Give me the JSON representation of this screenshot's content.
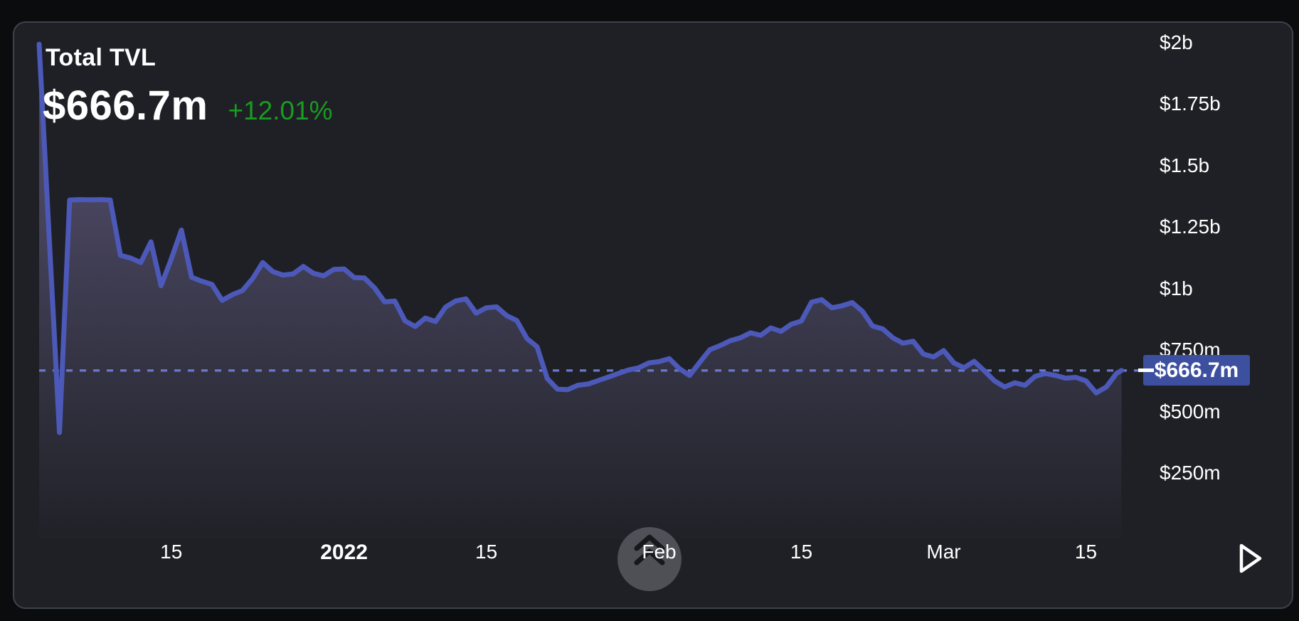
{
  "card": {
    "colors": {
      "background": "#1e2025",
      "border": "#3e424b",
      "line": "#4c59b8",
      "area_top": "rgba(134,122,178,0.42)",
      "area_bottom": "rgba(134,122,178,0)",
      "dotted_line": "#6a7ace",
      "badge_bg": "#3d50a0",
      "change_green": "#189c21"
    }
  },
  "chart_data": {
    "type": "area",
    "title": "Total TVL",
    "current_value": "$666.7m",
    "change_percent": "+12.01%",
    "legend_position": "none",
    "grid": "off",
    "x_axis": {
      "domain_days": [
        0,
        106.5
      ],
      "ticks": [
        {
          "label": "15",
          "day": 13,
          "bold": false
        },
        {
          "label": "2022",
          "day": 30,
          "bold": true
        },
        {
          "label": "15",
          "day": 44,
          "bold": false
        },
        {
          "label": "Feb",
          "day": 61,
          "bold": false
        },
        {
          "label": "15",
          "day": 75,
          "bold": false
        },
        {
          "label": "Mar",
          "day": 89,
          "bold": false
        },
        {
          "label": "15",
          "day": 103,
          "bold": false
        }
      ]
    },
    "y_axis": {
      "ticks": [
        {
          "label": "$2b",
          "value": 2000
        },
        {
          "label": "$1.75b",
          "value": 1750
        },
        {
          "label": "$1.5b",
          "value": 1500
        },
        {
          "label": "$1.25b",
          "value": 1250
        },
        {
          "label": "$1b",
          "value": 1000
        },
        {
          "label": "$750m",
          "value": 750
        },
        {
          "label": "$500m",
          "value": 500
        },
        {
          "label": "$250m",
          "value": 250
        }
      ]
    },
    "marker_line": {
      "label": "$666.7m",
      "value": 666.7
    },
    "series": [
      {
        "name": "Total TVL ($m)",
        "points": [
          [
            0,
            1994
          ],
          [
            1,
            1200
          ],
          [
            2,
            415
          ],
          [
            3,
            1360
          ],
          [
            4,
            1362
          ],
          [
            5,
            1361
          ],
          [
            6,
            1362
          ],
          [
            7,
            1360
          ],
          [
            8,
            1135
          ],
          [
            9,
            1124
          ],
          [
            10,
            1106
          ],
          [
            11,
            1190
          ],
          [
            12,
            1012
          ],
          [
            13,
            1120
          ],
          [
            14,
            1238
          ],
          [
            15,
            1046
          ],
          [
            16,
            1030
          ],
          [
            17,
            1017
          ],
          [
            18,
            952
          ],
          [
            19,
            975
          ],
          [
            20,
            992
          ],
          [
            21,
            1040
          ],
          [
            22,
            1106
          ],
          [
            23,
            1069
          ],
          [
            24,
            1055
          ],
          [
            25,
            1060
          ],
          [
            26,
            1090
          ],
          [
            27,
            1062
          ],
          [
            28,
            1052
          ],
          [
            29,
            1078
          ],
          [
            30,
            1080
          ],
          [
            31,
            1045
          ],
          [
            32,
            1043
          ],
          [
            33,
            1003
          ],
          [
            34,
            946
          ],
          [
            35,
            949
          ],
          [
            36,
            869
          ],
          [
            37,
            846
          ],
          [
            38,
            880
          ],
          [
            39,
            866
          ],
          [
            40,
            925
          ],
          [
            41,
            950
          ],
          [
            42,
            958
          ],
          [
            43,
            900
          ],
          [
            44,
            922
          ],
          [
            45,
            926
          ],
          [
            46,
            890
          ],
          [
            47,
            870
          ],
          [
            48,
            797
          ],
          [
            49,
            763
          ],
          [
            50,
            634
          ],
          [
            51,
            591
          ],
          [
            52,
            589
          ],
          [
            53,
            607
          ],
          [
            54,
            612
          ],
          [
            55,
            626
          ],
          [
            56,
            640
          ],
          [
            57,
            655
          ],
          [
            58,
            669
          ],
          [
            59,
            678
          ],
          [
            60,
            698
          ],
          [
            61,
            703
          ],
          [
            62,
            715
          ],
          [
            63,
            675
          ],
          [
            64,
            647
          ],
          [
            65,
            700
          ],
          [
            66,
            752
          ],
          [
            67,
            768
          ],
          [
            68,
            788
          ],
          [
            69,
            800
          ],
          [
            70,
            820
          ],
          [
            71,
            810
          ],
          [
            72,
            840
          ],
          [
            73,
            826
          ],
          [
            74,
            855
          ],
          [
            75,
            868
          ],
          [
            76,
            945
          ],
          [
            77,
            955
          ],
          [
            78,
            922
          ],
          [
            79,
            930
          ],
          [
            80,
            943
          ],
          [
            81,
            908
          ],
          [
            82,
            848
          ],
          [
            83,
            836
          ],
          [
            84,
            800
          ],
          [
            85,
            778
          ],
          [
            86,
            786
          ],
          [
            87,
            734
          ],
          [
            88,
            722
          ],
          [
            89,
            748
          ],
          [
            90,
            698
          ],
          [
            91,
            678
          ],
          [
            92,
            704
          ],
          [
            93,
            666
          ],
          [
            94,
            625
          ],
          [
            95,
            600
          ],
          [
            96,
            617
          ],
          [
            97,
            607
          ],
          [
            98,
            643
          ],
          [
            99,
            655
          ],
          [
            100,
            647
          ],
          [
            101,
            636
          ],
          [
            102,
            639
          ],
          [
            103,
            625
          ],
          [
            104,
            576
          ],
          [
            105,
            600
          ],
          [
            106,
            655
          ],
          [
            106.5,
            667
          ]
        ]
      }
    ]
  }
}
